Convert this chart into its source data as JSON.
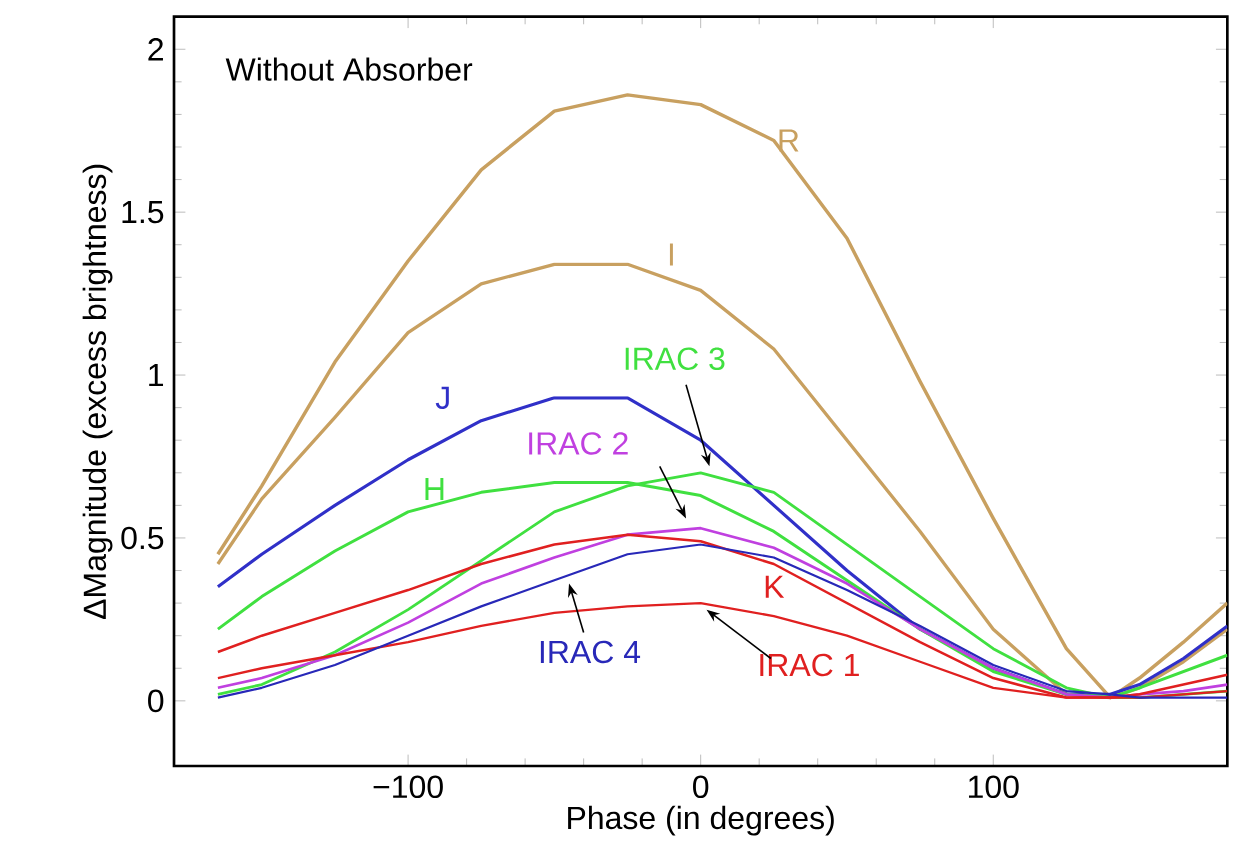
{
  "chart_data": {
    "type": "line",
    "xlabel": "Phase (in degrees)",
    "ylabel": "ΔMagnitude (excess brightness)",
    "annotations": [
      "Without Absorber"
    ],
    "x": [
      -165,
      -150,
      -125,
      -100,
      -75,
      -50,
      -25,
      0,
      25,
      50,
      75,
      100,
      125,
      140,
      150,
      165,
      180
    ],
    "series": [
      {
        "name": "R",
        "color": "#c8a060",
        "values": [
          0.45,
          0.66,
          1.04,
          1.35,
          1.63,
          1.81,
          1.86,
          1.83,
          1.72,
          1.42,
          0.98,
          0.56,
          0.16,
          0.01,
          0.07,
          0.18,
          0.3
        ]
      },
      {
        "name": "I",
        "color": "#c8a060",
        "values": [
          0.42,
          0.62,
          0.87,
          1.13,
          1.28,
          1.34,
          1.34,
          1.26,
          1.08,
          0.8,
          0.52,
          0.22,
          0.02,
          0.01,
          0.04,
          0.12,
          0.22
        ]
      },
      {
        "name": "J",
        "color": "#3030c8",
        "values": [
          0.35,
          0.45,
          0.6,
          0.74,
          0.86,
          0.93,
          0.93,
          0.8,
          0.6,
          0.4,
          0.22,
          0.1,
          0.02,
          0.02,
          0.05,
          0.13,
          0.23
        ]
      },
      {
        "name": "H",
        "color": "#40e040",
        "values": [
          0.22,
          0.32,
          0.46,
          0.58,
          0.64,
          0.67,
          0.67,
          0.63,
          0.52,
          0.37,
          0.22,
          0.09,
          0.02,
          0.01,
          0.04,
          0.09,
          0.14
        ]
      },
      {
        "name": "IRAC 3",
        "color": "#40e040",
        "values": [
          0.02,
          0.05,
          0.15,
          0.28,
          0.43,
          0.58,
          0.66,
          0.7,
          0.64,
          0.48,
          0.32,
          0.16,
          0.04,
          0.01,
          0.01,
          0.02,
          0.03
        ]
      },
      {
        "name": "IRAC 2",
        "color": "#c040e0",
        "values": [
          0.04,
          0.07,
          0.14,
          0.24,
          0.36,
          0.44,
          0.51,
          0.53,
          0.47,
          0.36,
          0.22,
          0.1,
          0.02,
          0.01,
          0.02,
          0.03,
          0.05
        ]
      },
      {
        "name": "K",
        "color": "#e02020",
        "values": [
          0.15,
          0.2,
          0.27,
          0.34,
          0.42,
          0.48,
          0.51,
          0.49,
          0.42,
          0.3,
          0.18,
          0.07,
          0.01,
          0.01,
          0.02,
          0.05,
          0.08
        ]
      },
      {
        "name": "IRAC 1",
        "color": "#e02020",
        "values": [
          0.07,
          0.1,
          0.14,
          0.18,
          0.23,
          0.27,
          0.29,
          0.3,
          0.26,
          0.2,
          0.12,
          0.04,
          0.01,
          0.01,
          0.01,
          0.02,
          0.03
        ]
      },
      {
        "name": "IRAC 4",
        "color": "#2828b8",
        "values": [
          0.01,
          0.04,
          0.11,
          0.2,
          0.29,
          0.37,
          0.45,
          0.48,
          0.44,
          0.34,
          0.23,
          0.11,
          0.03,
          0.02,
          0.01,
          0.01,
          0.01
        ]
      }
    ],
    "xlim": [
      -180,
      180
    ],
    "ylim": [
      -0.2,
      2.1
    ],
    "xticks": [
      {
        "value": -100,
        "label": "−100"
      },
      0,
      100
    ],
    "yticks": [
      0,
      0.5,
      1,
      1.5,
      2
    ],
    "grid": false,
    "marker": "none",
    "line_style": "solid"
  }
}
